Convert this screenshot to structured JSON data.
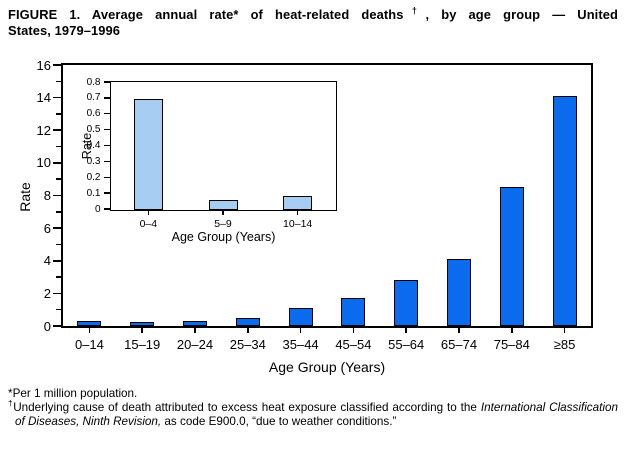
{
  "title": {
    "full": "FIGURE 1. Average annual rate* of heat-related deaths†, by age group — United States, 1979–1996",
    "line1_pre": "FIGURE 1. Average annual rate* of heat-related deaths",
    "line1_sup": "†",
    "line1_post": ", by age group — United",
    "line2": "States, 1979–1996"
  },
  "chart_data": [
    {
      "id": "main",
      "type": "bar",
      "title": "",
      "categories": [
        "0–14",
        "15–19",
        "20–24",
        "25–34",
        "35–44",
        "45–54",
        "55–64",
        "65–74",
        "75–84",
        "≥85"
      ],
      "values": [
        0.3,
        0.25,
        0.3,
        0.5,
        1.1,
        1.7,
        2.8,
        4.1,
        8.5,
        14.1
      ],
      "xlabel": "Age Group (Years)",
      "ylabel": "Rate",
      "ylim": [
        0,
        16
      ],
      "yticks": [
        "0",
        "2",
        "4",
        "6",
        "8",
        "10",
        "12",
        "14",
        "16"
      ],
      "minor_yticks": [
        1,
        3,
        5,
        7,
        9,
        11,
        13,
        15
      ],
      "bar_color": "#0b6bef",
      "grid": false,
      "legend_position": "none"
    },
    {
      "id": "inset",
      "type": "bar",
      "title": "",
      "categories": [
        "0–4",
        "5–9",
        "10–14"
      ],
      "values": [
        0.7,
        0.06,
        0.09
      ],
      "xlabel": "Age Group (Years)",
      "ylabel": "Rate",
      "ylim": [
        0,
        0.8
      ],
      "yticks": [
        "0",
        "0.1",
        "0.2",
        "0.3",
        "0.4",
        "0.5",
        "0.6",
        "0.7",
        "0.8"
      ],
      "minor_yticks": [],
      "bar_color": "#a6cdf2",
      "grid": false,
      "legend_position": "none"
    }
  ],
  "footnotes": {
    "note1_symbol": "*",
    "note1_text": "Per 1 million population.",
    "note2_symbol": "†",
    "note2_pre": "Underlying cause of death attributed to excess heat exposure classified according to the ",
    "note2_italic": "International Classification of Diseases, Ninth Revision,",
    "note2_post": " as code E900.0, “due to weather conditions.”"
  },
  "colors": {
    "main_bar": "#0b6bef",
    "inset_bar": "#a6cdf2",
    "axis": "#000000",
    "background": "#ffffff"
  }
}
